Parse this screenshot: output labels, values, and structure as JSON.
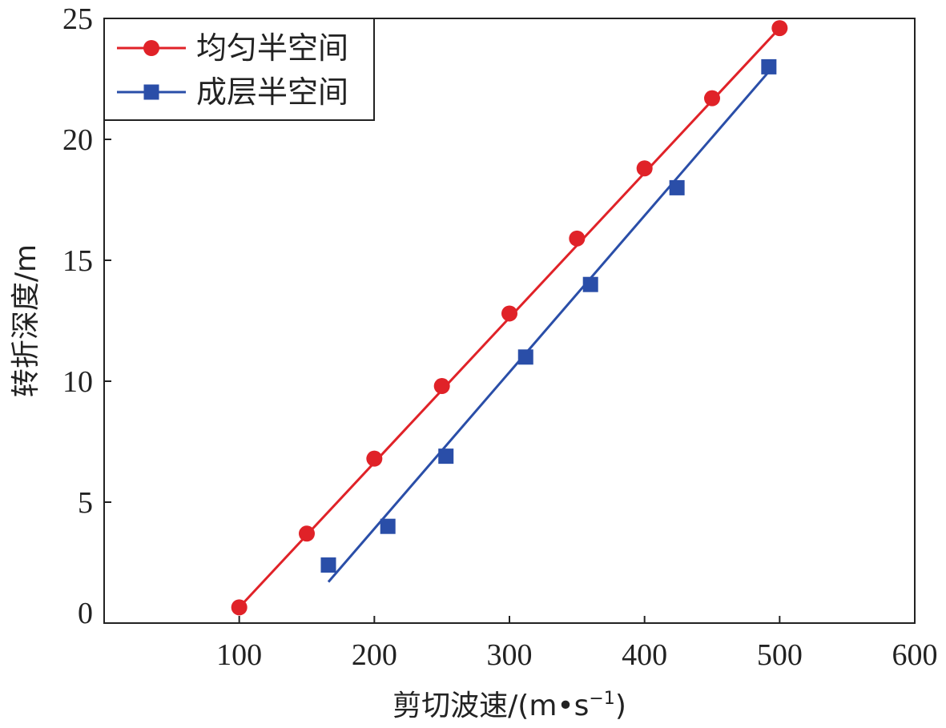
{
  "chart_data": {
    "type": "scatter",
    "xlabel": "剪切波速/(m•s",
    "xlabel_sup": "−1",
    "xlabel_close": ")",
    "ylabel": "转折深度/m",
    "xlim": [
      0,
      600
    ],
    "ylim": [
      0,
      25
    ],
    "xticks": [
      100,
      200,
      300,
      400,
      500,
      600
    ],
    "yticks": [
      0,
      5,
      10,
      15,
      20,
      25
    ],
    "legend_position": "top-left",
    "series": [
      {
        "name": "均匀半空间",
        "color": "#e02228",
        "marker": "circle",
        "points": [
          [
            100,
            0.65
          ],
          [
            150,
            3.7
          ],
          [
            200,
            6.8
          ],
          [
            250,
            9.8
          ],
          [
            300,
            12.8
          ],
          [
            350,
            15.9
          ],
          [
            400,
            18.8
          ],
          [
            450,
            21.7
          ],
          [
            500,
            24.6
          ]
        ],
        "fit_line": [
          [
            100,
            0.65
          ],
          [
            500,
            24.6
          ]
        ]
      },
      {
        "name": "成层半空间",
        "color": "#2a4ea8",
        "marker": "square",
        "points": [
          [
            166,
            2.4
          ],
          [
            210,
            4.0
          ],
          [
            253,
            6.9
          ],
          [
            312,
            11.0
          ],
          [
            360,
            14.0
          ],
          [
            424,
            18.0
          ],
          [
            492,
            23.0
          ]
        ],
        "fit_line": [
          [
            166,
            1.7
          ],
          [
            492,
            22.8
          ]
        ]
      }
    ]
  }
}
